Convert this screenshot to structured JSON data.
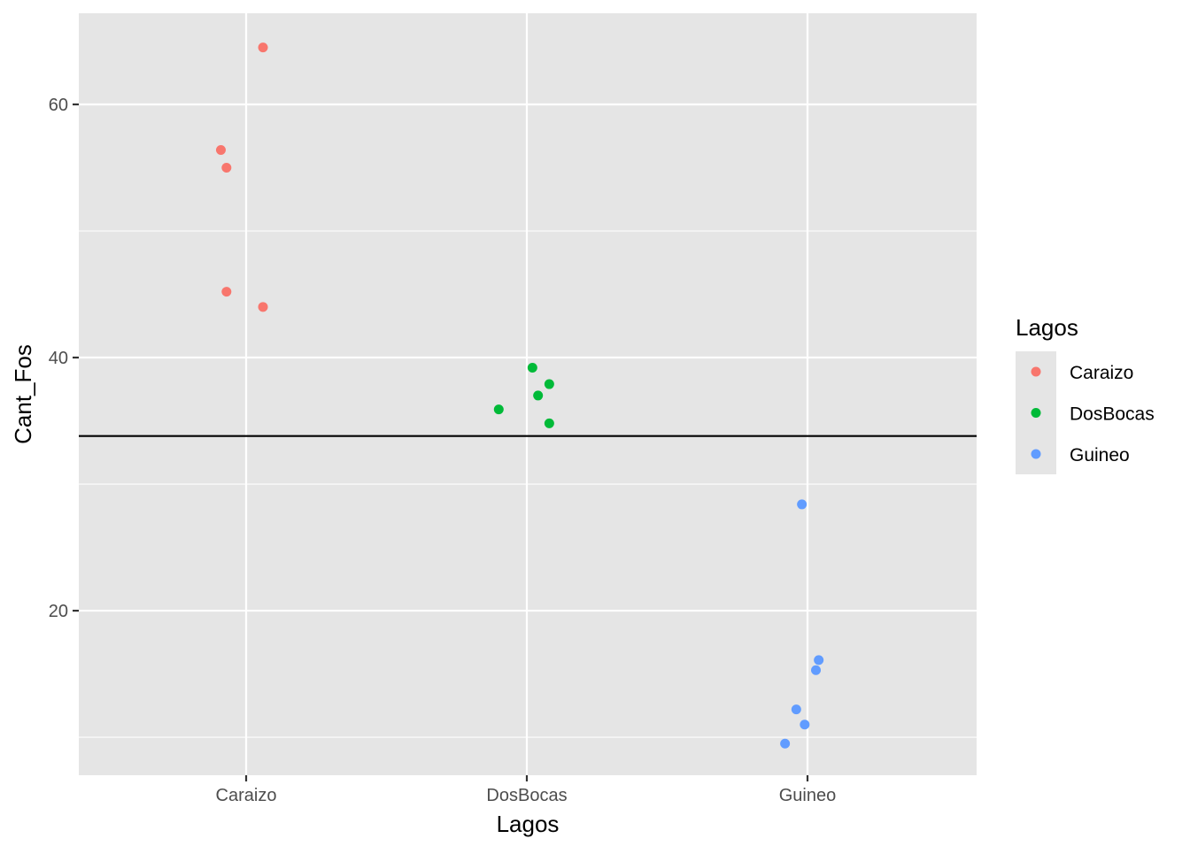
{
  "chart_data": {
    "type": "scatter",
    "xlabel": "Lagos",
    "ylabel": "Cant_Fos",
    "categories": [
      "Caraizo",
      "DosBocas",
      "Guineo"
    ],
    "ylim": [
      7,
      67.2
    ],
    "yticks": [
      20,
      40,
      60
    ],
    "grid": true,
    "hline": 33.8,
    "legend": {
      "title": "Lagos",
      "position": "right",
      "entries": [
        "Caraizo",
        "DosBocas",
        "Guineo"
      ]
    },
    "colors": {
      "Caraizo": "#F8766D",
      "DosBocas": "#00BA38",
      "Guineo": "#619CFF",
      "panel": "#E5E5E5",
      "grid": "#FFFFFF",
      "hline": "#000000"
    },
    "series": [
      {
        "name": "Caraizo",
        "points": [
          {
            "x": 1.06,
            "y": 64.5
          },
          {
            "x": 0.91,
            "y": 56.4
          },
          {
            "x": 0.93,
            "y": 55.0
          },
          {
            "x": 0.93,
            "y": 45.2
          },
          {
            "x": 1.06,
            "y": 44.0
          }
        ]
      },
      {
        "name": "DosBocas",
        "points": [
          {
            "x": 2.02,
            "y": 39.2
          },
          {
            "x": 2.08,
            "y": 37.9
          },
          {
            "x": 2.04,
            "y": 37.0
          },
          {
            "x": 1.9,
            "y": 35.9
          },
          {
            "x": 2.08,
            "y": 34.8
          }
        ]
      },
      {
        "name": "Guineo",
        "points": [
          {
            "x": 2.98,
            "y": 28.4
          },
          {
            "x": 3.04,
            "y": 16.1
          },
          {
            "x": 3.03,
            "y": 15.3
          },
          {
            "x": 2.96,
            "y": 12.2
          },
          {
            "x": 2.99,
            "y": 11.0
          },
          {
            "x": 2.92,
            "y": 9.5
          }
        ]
      }
    ]
  }
}
